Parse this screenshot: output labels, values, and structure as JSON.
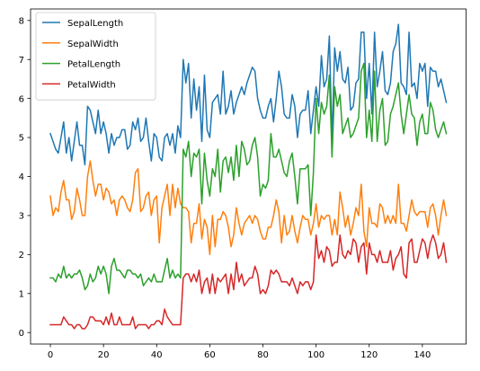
{
  "chart_data": {
    "type": "line",
    "title": "",
    "xlabel": "",
    "ylabel": "",
    "xlim": [
      -7.45,
      156.45
    ],
    "ylim": [
      -0.295,
      8.295
    ],
    "xticks": [
      0,
      20,
      40,
      60,
      80,
      100,
      120,
      140
    ],
    "yticks": [
      0,
      1,
      2,
      3,
      4,
      5,
      6,
      7,
      8
    ],
    "grid": false,
    "legend": "top-left",
    "series": [
      {
        "name": "SepalLength",
        "color": "#1f77b4",
        "values": [
          5.1,
          4.9,
          4.7,
          4.6,
          5.0,
          5.4,
          4.6,
          5.0,
          4.4,
          4.9,
          5.4,
          4.8,
          4.8,
          4.3,
          5.8,
          5.7,
          5.4,
          5.1,
          5.7,
          5.1,
          5.4,
          5.1,
          4.6,
          5.1,
          4.8,
          5.0,
          5.0,
          5.2,
          5.2,
          4.7,
          4.8,
          5.4,
          5.2,
          5.5,
          4.9,
          5.0,
          5.5,
          4.9,
          4.4,
          5.1,
          5.0,
          4.5,
          4.4,
          5.0,
          5.1,
          4.8,
          5.1,
          4.6,
          5.3,
          5.0,
          7.0,
          6.4,
          6.9,
          5.5,
          6.5,
          5.7,
          6.3,
          4.9,
          6.6,
          5.2,
          5.0,
          5.9,
          6.0,
          6.1,
          5.6,
          6.7,
          5.6,
          5.8,
          6.2,
          5.6,
          5.9,
          6.1,
          6.3,
          6.1,
          6.4,
          6.6,
          6.8,
          6.7,
          6.0,
          5.7,
          5.5,
          5.5,
          5.8,
          6.0,
          5.4,
          6.0,
          6.7,
          6.3,
          5.6,
          5.5,
          5.5,
          6.1,
          5.8,
          5.0,
          5.6,
          5.7,
          5.7,
          6.2,
          5.1,
          5.7,
          6.3,
          5.8,
          7.1,
          6.3,
          6.5,
          7.6,
          4.9,
          7.3,
          6.7,
          7.2,
          6.5,
          6.4,
          6.8,
          5.7,
          5.8,
          6.4,
          6.5,
          7.7,
          7.7,
          6.0,
          6.9,
          5.6,
          7.7,
          6.3,
          6.7,
          7.2,
          6.2,
          6.1,
          6.4,
          7.2,
          7.4,
          7.9,
          6.4,
          6.3,
          6.1,
          7.7,
          6.3,
          6.4,
          6.0,
          6.9,
          6.7,
          6.9,
          5.8,
          6.8,
          6.7,
          6.7,
          6.3,
          6.5,
          6.2,
          5.9
        ]
      },
      {
        "name": "SepalWidth",
        "color": "#ff7f0e",
        "values": [
          3.5,
          3.0,
          3.2,
          3.1,
          3.6,
          3.9,
          3.4,
          3.4,
          2.9,
          3.1,
          3.7,
          3.4,
          3.0,
          3.0,
          4.0,
          4.4,
          3.9,
          3.5,
          3.8,
          3.8,
          3.4,
          3.7,
          3.6,
          3.3,
          3.4,
          3.0,
          3.4,
          3.5,
          3.4,
          3.2,
          3.1,
          3.4,
          4.1,
          4.2,
          3.1,
          3.2,
          3.5,
          3.6,
          3.0,
          3.4,
          3.5,
          2.3,
          3.2,
          3.5,
          3.8,
          3.0,
          3.8,
          3.2,
          3.7,
          3.3,
          3.2,
          3.2,
          3.1,
          2.3,
          2.8,
          2.8,
          3.3,
          2.4,
          2.9,
          2.7,
          2.0,
          3.0,
          2.2,
          2.9,
          2.9,
          3.1,
          3.0,
          2.7,
          2.2,
          2.5,
          3.2,
          2.8,
          2.5,
          2.8,
          2.9,
          3.0,
          2.8,
          3.0,
          2.9,
          2.6,
          2.4,
          2.4,
          2.7,
          2.7,
          3.0,
          3.4,
          3.1,
          2.3,
          3.0,
          2.5,
          2.6,
          3.0,
          2.6,
          2.3,
          2.7,
          3.0,
          2.9,
          2.9,
          2.5,
          2.8,
          3.3,
          2.7,
          3.0,
          2.9,
          3.0,
          3.0,
          2.5,
          2.9,
          2.5,
          3.6,
          3.2,
          2.7,
          3.0,
          2.5,
          2.8,
          3.2,
          3.0,
          3.8,
          2.6,
          2.2,
          3.2,
          2.8,
          2.8,
          2.7,
          3.3,
          3.2,
          2.8,
          3.0,
          2.8,
          3.0,
          2.8,
          3.8,
          2.8,
          2.8,
          2.6,
          3.0,
          3.4,
          3.1,
          3.0,
          3.1,
          3.1,
          3.1,
          2.7,
          3.2,
          3.3,
          3.0,
          2.5,
          3.0,
          3.4,
          3.0
        ]
      },
      {
        "name": "PetalLength",
        "color": "#2ca02c",
        "values": [
          1.4,
          1.4,
          1.3,
          1.5,
          1.4,
          1.7,
          1.4,
          1.5,
          1.4,
          1.5,
          1.5,
          1.6,
          1.4,
          1.1,
          1.2,
          1.5,
          1.3,
          1.4,
          1.7,
          1.5,
          1.7,
          1.5,
          1.0,
          1.7,
          1.9,
          1.6,
          1.6,
          1.5,
          1.4,
          1.6,
          1.6,
          1.5,
          1.5,
          1.4,
          1.5,
          1.2,
          1.3,
          1.4,
          1.3,
          1.5,
          1.3,
          1.3,
          1.3,
          1.6,
          1.9,
          1.4,
          1.6,
          1.4,
          1.5,
          1.4,
          4.7,
          4.5,
          4.9,
          4.0,
          4.6,
          4.5,
          4.7,
          3.3,
          4.6,
          3.9,
          3.5,
          4.2,
          4.0,
          4.7,
          3.6,
          4.4,
          4.5,
          4.1,
          4.5,
          3.9,
          4.8,
          4.0,
          4.9,
          4.7,
          4.3,
          4.4,
          4.8,
          5.0,
          4.5,
          3.5,
          3.8,
          3.7,
          3.9,
          5.1,
          4.5,
          4.5,
          4.7,
          4.4,
          4.1,
          4.0,
          4.4,
          4.6,
          4.0,
          3.3,
          4.2,
          4.2,
          4.2,
          4.3,
          3.0,
          4.1,
          6.0,
          5.1,
          5.9,
          5.6,
          5.8,
          6.6,
          4.5,
          6.3,
          5.8,
          6.1,
          5.1,
          5.3,
          5.5,
          5.0,
          5.1,
          5.3,
          5.5,
          6.7,
          6.9,
          5.0,
          5.7,
          4.9,
          6.7,
          4.9,
          5.7,
          6.0,
          4.8,
          4.9,
          5.6,
          5.8,
          6.1,
          6.4,
          5.6,
          5.1,
          5.6,
          6.1,
          5.6,
          5.5,
          4.8,
          5.4,
          5.6,
          5.1,
          5.1,
          5.9,
          5.7,
          5.2,
          5.0,
          5.2,
          5.4,
          5.1
        ]
      },
      {
        "name": "PetalWidth",
        "color": "#d62728",
        "values": [
          0.2,
          0.2,
          0.2,
          0.2,
          0.2,
          0.4,
          0.3,
          0.2,
          0.2,
          0.1,
          0.2,
          0.2,
          0.1,
          0.1,
          0.2,
          0.4,
          0.4,
          0.3,
          0.3,
          0.3,
          0.2,
          0.4,
          0.2,
          0.5,
          0.2,
          0.2,
          0.4,
          0.2,
          0.2,
          0.2,
          0.2,
          0.4,
          0.1,
          0.2,
          0.2,
          0.2,
          0.2,
          0.1,
          0.2,
          0.2,
          0.3,
          0.3,
          0.2,
          0.6,
          0.4,
          0.3,
          0.2,
          0.2,
          0.2,
          0.2,
          1.4,
          1.5,
          1.5,
          1.3,
          1.5,
          1.3,
          1.6,
          1.0,
          1.3,
          1.4,
          1.0,
          1.5,
          1.0,
          1.4,
          1.3,
          1.4,
          1.5,
          1.0,
          1.5,
          1.1,
          1.8,
          1.3,
          1.5,
          1.2,
          1.3,
          1.4,
          1.4,
          1.7,
          1.5,
          1.0,
          1.1,
          1.0,
          1.2,
          1.6,
          1.5,
          1.6,
          1.5,
          1.3,
          1.3,
          1.3,
          1.2,
          1.4,
          1.2,
          1.0,
          1.3,
          1.2,
          1.3,
          1.3,
          1.1,
          1.3,
          2.5,
          1.9,
          2.1,
          1.8,
          2.2,
          2.1,
          1.7,
          1.8,
          1.8,
          2.5,
          2.0,
          1.9,
          2.1,
          2.0,
          2.4,
          2.3,
          1.8,
          2.2,
          2.3,
          1.5,
          2.3,
          2.0,
          2.0,
          1.8,
          2.1,
          1.8,
          1.8,
          1.8,
          2.1,
          1.6,
          1.9,
          2.0,
          2.2,
          1.5,
          1.4,
          2.3,
          2.4,
          1.8,
          1.8,
          2.1,
          2.4,
          2.3,
          1.9,
          2.3,
          2.5,
          2.3,
          1.9,
          2.0,
          2.3,
          1.8
        ]
      }
    ]
  }
}
